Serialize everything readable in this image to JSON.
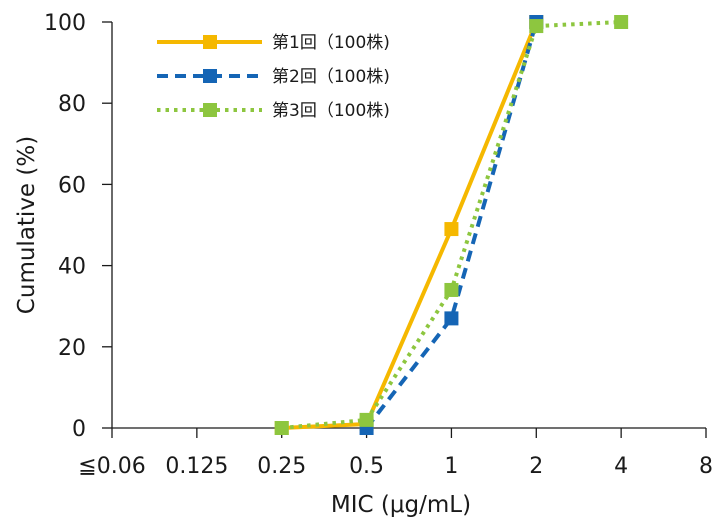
{
  "chart_data": {
    "type": "line",
    "x_categories": [
      "≦0.06",
      "0.125",
      "0.25",
      "0.5",
      "1",
      "2",
      "4",
      "8"
    ],
    "xlabel": "MIC (μg/mL)",
    "ylabel": "Cumulative (%)",
    "ylim": [
      0,
      100
    ],
    "yticks": [
      0,
      20,
      40,
      60,
      80,
      100
    ],
    "grid": false,
    "legend_position": "top-left",
    "series": [
      {
        "name": "第1回（100株)",
        "color": "#F5B800",
        "line_style": "solid",
        "marker": "square",
        "points": [
          {
            "x": "0.25",
            "y": 0
          },
          {
            "x": "0.5",
            "y": 1
          },
          {
            "x": "1",
            "y": 49
          },
          {
            "x": "2",
            "y": 100
          }
        ]
      },
      {
        "name": "第2回（100株)",
        "color": "#1565B5",
        "line_style": "dashed",
        "marker": "square",
        "points": [
          {
            "x": "0.5",
            "y": 0
          },
          {
            "x": "1",
            "y": 27
          },
          {
            "x": "2",
            "y": 100
          }
        ]
      },
      {
        "name": "第3回（100株)",
        "color": "#8DC63F",
        "line_style": "dotted",
        "marker": "square",
        "points": [
          {
            "x": "0.25",
            "y": 0
          },
          {
            "x": "0.5",
            "y": 2
          },
          {
            "x": "1",
            "y": 34
          },
          {
            "x": "2",
            "y": 99
          },
          {
            "x": "4",
            "y": 100
          }
        ]
      }
    ]
  }
}
